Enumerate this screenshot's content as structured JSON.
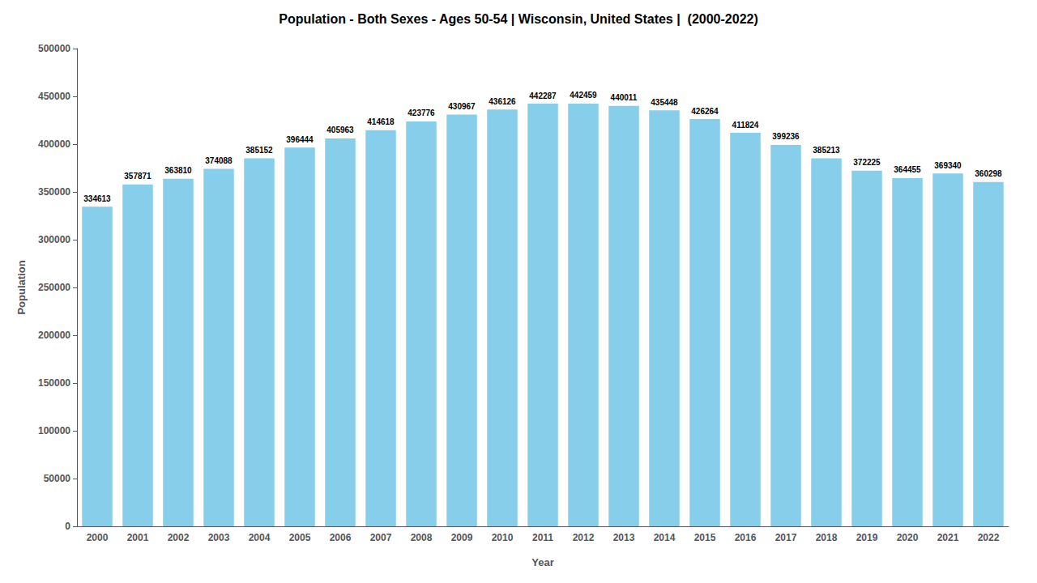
{
  "chart_data": {
    "type": "bar",
    "title": "Population - Both Sexes - Ages 50-54 | Wisconsin, United States |  (2000-2022)",
    "x_label": "Year",
    "y_label": "Population",
    "categories": [
      "2000",
      "2001",
      "2002",
      "2003",
      "2004",
      "2005",
      "2006",
      "2007",
      "2008",
      "2009",
      "2010",
      "2011",
      "2012",
      "2013",
      "2014",
      "2015",
      "2016",
      "2017",
      "2018",
      "2019",
      "2020",
      "2021",
      "2022"
    ],
    "values": [
      334613,
      357871,
      363810,
      374088,
      385152,
      396444,
      405963,
      414618,
      423776,
      430967,
      436126,
      442287,
      442459,
      440011,
      435448,
      426264,
      411824,
      399236,
      385213,
      372225,
      364455,
      369340,
      360298
    ],
    "color": "#87CEEB",
    "ylim": [
      0,
      500000
    ],
    "yticks": [
      0,
      50000,
      100000,
      150000,
      200000,
      250000,
      300000,
      350000,
      400000,
      450000,
      500000
    ],
    "grid": false,
    "data_labels": true
  }
}
